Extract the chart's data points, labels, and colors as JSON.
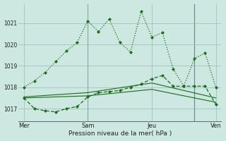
{
  "background_color": "#cce8e0",
  "grid_color": "#99bbbb",
  "line_color": "#1a6b1a",
  "x_ticks_labels": [
    "Mer",
    "Sam",
    "Jeu",
    "Ven"
  ],
  "ylabel": "Pression niveau de la mer( hPa )",
  "ylim": [
    1016.4,
    1021.9
  ],
  "yticks": [
    1017,
    1018,
    1019,
    1020,
    1021
  ],
  "line1_x": [
    0,
    1,
    2,
    3,
    4,
    5,
    6,
    7,
    8,
    9,
    10,
    11,
    12,
    13,
    14,
    15,
    16,
    17,
    18
  ],
  "line1_y": [
    1018.0,
    1018.3,
    1018.7,
    1019.2,
    1019.7,
    1020.1,
    1021.1,
    1020.6,
    1021.2,
    1020.1,
    1019.65,
    1021.55,
    1020.35,
    1020.55,
    1018.85,
    1018.05,
    1019.35,
    1019.6,
    1018.0
  ],
  "line2_x": [
    0,
    1,
    2,
    3,
    4,
    5,
    6,
    7,
    8,
    9,
    10,
    11,
    12,
    13,
    14,
    15,
    16,
    17,
    18
  ],
  "line2_y": [
    1017.5,
    1017.0,
    1016.9,
    1016.85,
    1017.0,
    1017.1,
    1017.55,
    1017.75,
    1017.8,
    1017.85,
    1018.0,
    1018.15,
    1018.4,
    1018.55,
    1018.05,
    1018.05,
    1018.05,
    1018.05,
    1017.2
  ],
  "line3_x": [
    0,
    6,
    12,
    18
  ],
  "line3_y": [
    1017.5,
    1017.6,
    1017.9,
    1017.3
  ],
  "line4_x": [
    0,
    6,
    12,
    18
  ],
  "line4_y": [
    1017.55,
    1017.75,
    1018.2,
    1017.5
  ],
  "xtick_positions": [
    0,
    6,
    12,
    18
  ],
  "vline_positions": [
    6,
    16
  ],
  "figsize": [
    3.2,
    2.0
  ],
  "dpi": 100
}
